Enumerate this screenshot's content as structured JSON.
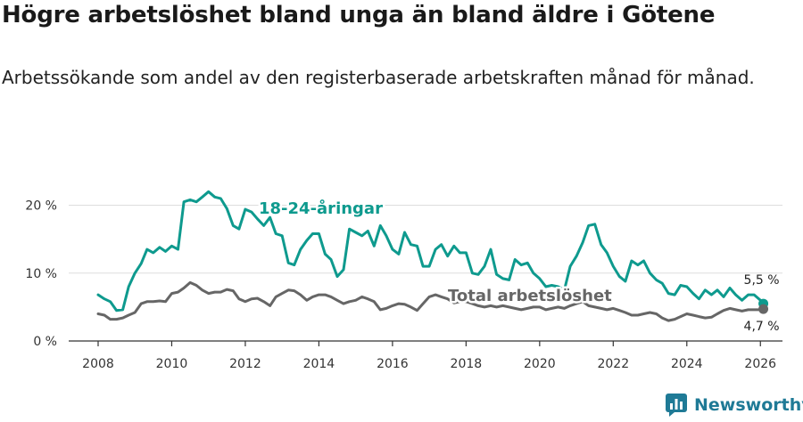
{
  "header": {
    "title": "Högre arbetslöshet bland unga än bland äldre i Götene",
    "subtitle": "Arbetssökande som andel av den registerbaserade arbetskraften månad för månad."
  },
  "brand": {
    "name": "Newsworthy"
  },
  "colors": {
    "youth": "#0e9a8e",
    "total": "#666666",
    "grid": "#dddddd",
    "axis": "#333333",
    "brand": "#1f7a96"
  },
  "chart_data": {
    "type": "line",
    "title": "Högre arbetslöshet bland unga än bland äldre i Götene",
    "xlabel": "",
    "ylabel": "",
    "xlim": [
      2007.2,
      2026.6
    ],
    "ylim": [
      0,
      24
    ],
    "y_ticks": [
      0,
      10,
      20
    ],
    "y_tick_labels": [
      "0 %",
      "10 %",
      "20 %"
    ],
    "x_ticks": [
      2008,
      2010,
      2012,
      2014,
      2016,
      2018,
      2020,
      2022,
      2024,
      2026
    ],
    "x_tick_labels": [
      "2008",
      "2010",
      "2012",
      "2014",
      "2016",
      "2018",
      "2020",
      "2022",
      "2024",
      "2026"
    ],
    "series": [
      {
        "name": "18-24-åringar",
        "label": "18-24-åringar",
        "end_label": "5,5 %",
        "color": "#0e9a8e",
        "points": [
          [
            2008.0,
            6.8
          ],
          [
            2008.17,
            6.2
          ],
          [
            2008.33,
            5.8
          ],
          [
            2008.5,
            4.5
          ],
          [
            2008.67,
            4.6
          ],
          [
            2008.83,
            8.0
          ],
          [
            2009.0,
            10.0
          ],
          [
            2009.17,
            11.4
          ],
          [
            2009.33,
            13.5
          ],
          [
            2009.5,
            13.0
          ],
          [
            2009.67,
            13.8
          ],
          [
            2009.83,
            13.2
          ],
          [
            2010.0,
            14.0
          ],
          [
            2010.17,
            13.5
          ],
          [
            2010.33,
            20.5
          ],
          [
            2010.5,
            20.8
          ],
          [
            2010.67,
            20.5
          ],
          [
            2010.83,
            21.2
          ],
          [
            2011.0,
            22.0
          ],
          [
            2011.17,
            21.2
          ],
          [
            2011.33,
            21.0
          ],
          [
            2011.5,
            19.5
          ],
          [
            2011.67,
            17.0
          ],
          [
            2011.83,
            16.5
          ],
          [
            2012.0,
            19.4
          ],
          [
            2012.17,
            19.0
          ],
          [
            2012.33,
            18.0
          ],
          [
            2012.5,
            17.0
          ],
          [
            2012.67,
            18.2
          ],
          [
            2012.83,
            15.8
          ],
          [
            2013.0,
            15.5
          ],
          [
            2013.17,
            11.5
          ],
          [
            2013.33,
            11.2
          ],
          [
            2013.5,
            13.5
          ],
          [
            2013.67,
            14.8
          ],
          [
            2013.83,
            15.8
          ],
          [
            2014.0,
            15.8
          ],
          [
            2014.17,
            12.8
          ],
          [
            2014.33,
            12.0
          ],
          [
            2014.5,
            9.5
          ],
          [
            2014.67,
            10.5
          ],
          [
            2014.83,
            16.5
          ],
          [
            2015.0,
            16.0
          ],
          [
            2015.17,
            15.5
          ],
          [
            2015.33,
            16.2
          ],
          [
            2015.5,
            14.0
          ],
          [
            2015.67,
            17.0
          ],
          [
            2015.83,
            15.5
          ],
          [
            2016.0,
            13.5
          ],
          [
            2016.17,
            12.8
          ],
          [
            2016.33,
            16.0
          ],
          [
            2016.5,
            14.2
          ],
          [
            2016.67,
            14.0
          ],
          [
            2016.83,
            11.0
          ],
          [
            2017.0,
            11.0
          ],
          [
            2017.17,
            13.5
          ],
          [
            2017.33,
            14.2
          ],
          [
            2017.5,
            12.5
          ],
          [
            2017.67,
            14.0
          ],
          [
            2017.83,
            13.0
          ],
          [
            2018.0,
            13.0
          ],
          [
            2018.17,
            10.0
          ],
          [
            2018.33,
            9.8
          ],
          [
            2018.5,
            11.0
          ],
          [
            2018.67,
            13.5
          ],
          [
            2018.83,
            9.8
          ],
          [
            2019.0,
            9.2
          ],
          [
            2019.17,
            9.0
          ],
          [
            2019.33,
            12.0
          ],
          [
            2019.5,
            11.2
          ],
          [
            2019.67,
            11.5
          ],
          [
            2019.83,
            10.0
          ],
          [
            2020.0,
            9.2
          ],
          [
            2020.17,
            8.0
          ],
          [
            2020.33,
            8.2
          ],
          [
            2020.5,
            8.0
          ],
          [
            2020.67,
            7.5
          ],
          [
            2020.83,
            11.0
          ],
          [
            2021.0,
            12.5
          ],
          [
            2021.17,
            14.5
          ],
          [
            2021.33,
            17.0
          ],
          [
            2021.5,
            17.2
          ],
          [
            2021.67,
            14.2
          ],
          [
            2021.83,
            13.0
          ],
          [
            2022.0,
            11.0
          ],
          [
            2022.17,
            9.5
          ],
          [
            2022.33,
            8.8
          ],
          [
            2022.5,
            11.8
          ],
          [
            2022.67,
            11.2
          ],
          [
            2022.83,
            11.8
          ],
          [
            2023.0,
            10.0
          ],
          [
            2023.17,
            9.0
          ],
          [
            2023.33,
            8.5
          ],
          [
            2023.5,
            7.0
          ],
          [
            2023.67,
            6.8
          ],
          [
            2023.83,
            8.2
          ],
          [
            2024.0,
            8.0
          ],
          [
            2024.17,
            7.0
          ],
          [
            2024.33,
            6.2
          ],
          [
            2024.5,
            7.5
          ],
          [
            2024.67,
            6.8
          ],
          [
            2024.83,
            7.5
          ],
          [
            2025.0,
            6.5
          ],
          [
            2025.17,
            7.8
          ],
          [
            2025.33,
            6.8
          ],
          [
            2025.5,
            6.0
          ],
          [
            2025.67,
            6.8
          ],
          [
            2025.83,
            6.8
          ],
          [
            2026.0,
            6.0
          ],
          [
            2026.08,
            5.5
          ]
        ]
      },
      {
        "name": "Total arbetslöshet",
        "label": "Total arbetslöshet",
        "end_label": "4,7 %",
        "color": "#666666",
        "points": [
          [
            2008.0,
            4.0
          ],
          [
            2008.17,
            3.8
          ],
          [
            2008.33,
            3.2
          ],
          [
            2008.5,
            3.2
          ],
          [
            2008.67,
            3.4
          ],
          [
            2008.83,
            3.8
          ],
          [
            2009.0,
            4.2
          ],
          [
            2009.17,
            5.5
          ],
          [
            2009.33,
            5.8
          ],
          [
            2009.5,
            5.8
          ],
          [
            2009.67,
            5.9
          ],
          [
            2009.83,
            5.8
          ],
          [
            2010.0,
            7.0
          ],
          [
            2010.17,
            7.2
          ],
          [
            2010.33,
            7.8
          ],
          [
            2010.5,
            8.6
          ],
          [
            2010.67,
            8.2
          ],
          [
            2010.83,
            7.5
          ],
          [
            2011.0,
            7.0
          ],
          [
            2011.17,
            7.2
          ],
          [
            2011.33,
            7.2
          ],
          [
            2011.5,
            7.6
          ],
          [
            2011.67,
            7.4
          ],
          [
            2011.83,
            6.2
          ],
          [
            2012.0,
            5.8
          ],
          [
            2012.17,
            6.2
          ],
          [
            2012.33,
            6.3
          ],
          [
            2012.5,
            5.8
          ],
          [
            2012.67,
            5.2
          ],
          [
            2012.83,
            6.5
          ],
          [
            2013.0,
            7.0
          ],
          [
            2013.17,
            7.5
          ],
          [
            2013.33,
            7.4
          ],
          [
            2013.5,
            6.8
          ],
          [
            2013.67,
            6.0
          ],
          [
            2013.83,
            6.5
          ],
          [
            2014.0,
            6.8
          ],
          [
            2014.17,
            6.8
          ],
          [
            2014.33,
            6.5
          ],
          [
            2014.5,
            6.0
          ],
          [
            2014.67,
            5.5
          ],
          [
            2014.83,
            5.8
          ],
          [
            2015.0,
            6.0
          ],
          [
            2015.17,
            6.5
          ],
          [
            2015.33,
            6.2
          ],
          [
            2015.5,
            5.8
          ],
          [
            2015.67,
            4.6
          ],
          [
            2015.83,
            4.8
          ],
          [
            2016.0,
            5.2
          ],
          [
            2016.17,
            5.5
          ],
          [
            2016.33,
            5.4
          ],
          [
            2016.5,
            5.0
          ],
          [
            2016.67,
            4.5
          ],
          [
            2016.83,
            5.5
          ],
          [
            2017.0,
            6.5
          ],
          [
            2017.17,
            6.8
          ],
          [
            2017.33,
            6.5
          ],
          [
            2017.5,
            6.2
          ],
          [
            2017.67,
            5.6
          ],
          [
            2017.83,
            5.8
          ],
          [
            2018.0,
            5.8
          ],
          [
            2018.17,
            5.5
          ],
          [
            2018.33,
            5.2
          ],
          [
            2018.5,
            5.0
          ],
          [
            2018.67,
            5.2
          ],
          [
            2018.83,
            5.0
          ],
          [
            2019.0,
            5.2
          ],
          [
            2019.17,
            5.0
          ],
          [
            2019.33,
            4.8
          ],
          [
            2019.5,
            4.6
          ],
          [
            2019.67,
            4.8
          ],
          [
            2019.83,
            5.0
          ],
          [
            2020.0,
            5.0
          ],
          [
            2020.17,
            4.6
          ],
          [
            2020.33,
            4.8
          ],
          [
            2020.5,
            5.0
          ],
          [
            2020.67,
            4.8
          ],
          [
            2020.83,
            5.2
          ],
          [
            2021.0,
            5.5
          ],
          [
            2021.17,
            5.8
          ],
          [
            2021.33,
            5.2
          ],
          [
            2021.5,
            5.0
          ],
          [
            2021.67,
            4.8
          ],
          [
            2021.83,
            4.6
          ],
          [
            2022.0,
            4.8
          ],
          [
            2022.17,
            4.5
          ],
          [
            2022.33,
            4.2
          ],
          [
            2022.5,
            3.8
          ],
          [
            2022.67,
            3.8
          ],
          [
            2022.83,
            4.0
          ],
          [
            2023.0,
            4.2
          ],
          [
            2023.17,
            4.0
          ],
          [
            2023.33,
            3.4
          ],
          [
            2023.5,
            3.0
          ],
          [
            2023.67,
            3.2
          ],
          [
            2023.83,
            3.6
          ],
          [
            2024.0,
            4.0
          ],
          [
            2024.17,
            3.8
          ],
          [
            2024.33,
            3.6
          ],
          [
            2024.5,
            3.4
          ],
          [
            2024.67,
            3.5
          ],
          [
            2024.83,
            4.0
          ],
          [
            2025.0,
            4.5
          ],
          [
            2025.17,
            4.8
          ],
          [
            2025.33,
            4.6
          ],
          [
            2025.5,
            4.4
          ],
          [
            2025.67,
            4.6
          ],
          [
            2025.83,
            4.6
          ],
          [
            2026.0,
            4.6
          ],
          [
            2026.08,
            4.7
          ]
        ]
      }
    ]
  }
}
